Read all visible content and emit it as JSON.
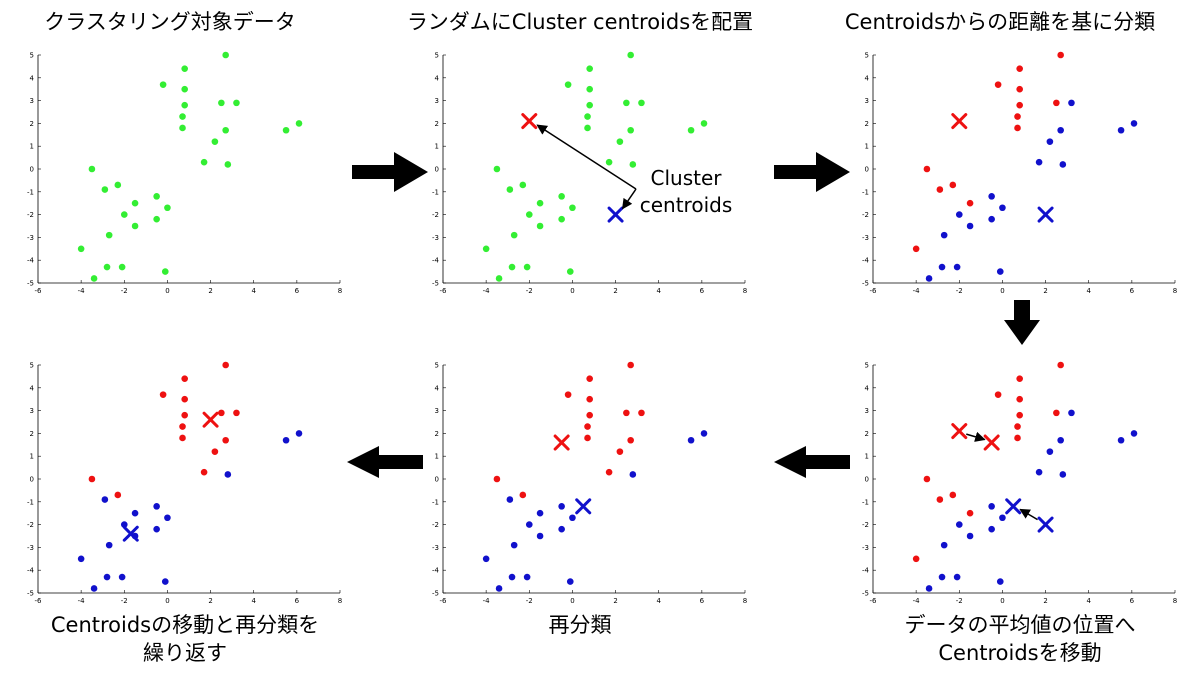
{
  "titles": {
    "p1": "クラスタリング対象データ",
    "p2": "ランダムにCluster centroidsを配置",
    "p3": "Centroidsからの距離を基に分類",
    "p4_line1": "データの平均値の位置へ",
    "p4_line2": "Centroidsを移動",
    "p5": "再分類",
    "p6_line1": "Centroidsの移動と再分類を",
    "p6_line2": "繰り返す"
  },
  "annotation": {
    "line1": "Cluster",
    "line2": "centroids"
  },
  "axes": {
    "x_ticks": [
      -6,
      -4,
      -2,
      0,
      2,
      4,
      6,
      8
    ],
    "y_ticks": [
      5,
      4,
      3,
      2,
      1,
      0,
      -1,
      -2,
      -3,
      -4,
      -5
    ],
    "xlim": [
      -6,
      8
    ],
    "ylim": [
      -5,
      5
    ]
  },
  "colors": {
    "unassigned": "#33ee33",
    "red": "#ee1111",
    "blue": "#1111cc",
    "arrow": "#000000"
  },
  "chart_data": {
    "type": "scatter",
    "points": [
      [
        -0.2,
        3.7
      ],
      [
        0.8,
        4.4
      ],
      [
        0.8,
        3.5
      ],
      [
        0.8,
        2.8
      ],
      [
        0.7,
        2.3
      ],
      [
        0.7,
        1.8
      ],
      [
        2.7,
        5.0
      ],
      [
        2.5,
        2.9
      ],
      [
        3.2,
        2.9
      ],
      [
        2.7,
        1.7
      ],
      [
        2.2,
        1.2
      ],
      [
        1.7,
        0.3
      ],
      [
        2.8,
        0.2
      ],
      [
        5.5,
        1.7
      ],
      [
        6.1,
        2.0
      ],
      [
        -3.5,
        0.0
      ],
      [
        -2.3,
        -0.7
      ],
      [
        -2.9,
        -0.9
      ],
      [
        -1.5,
        -1.5
      ],
      [
        -2.0,
        -2.0
      ],
      [
        -1.5,
        -2.5
      ],
      [
        -0.5,
        -1.2
      ],
      [
        -0.5,
        -2.2
      ],
      [
        0.0,
        -1.7
      ],
      [
        -2.7,
        -2.9
      ],
      [
        -4.0,
        -3.5
      ],
      [
        -2.8,
        -4.3
      ],
      [
        -2.1,
        -4.3
      ],
      [
        -0.1,
        -4.5
      ],
      [
        -3.4,
        -4.8
      ]
    ],
    "labels_step3": [
      "red",
      "red",
      "red",
      "red",
      "red",
      "red",
      "red",
      "red",
      "blue",
      "blue",
      "blue",
      "blue",
      "blue",
      "blue",
      "blue",
      "red",
      "red",
      "red",
      "red",
      "blue",
      "blue",
      "blue",
      "blue",
      "blue",
      "blue",
      "red",
      "blue",
      "blue",
      "blue",
      "blue"
    ],
    "labels_step5": [
      "red",
      "red",
      "red",
      "red",
      "red",
      "red",
      "red",
      "red",
      "red",
      "red",
      "red",
      "red",
      "blue",
      "blue",
      "blue",
      "red",
      "red",
      "blue",
      "blue",
      "blue",
      "blue",
      "blue",
      "blue",
      "blue",
      "blue",
      "blue",
      "blue",
      "blue",
      "blue",
      "blue"
    ],
    "centroids": {
      "initial": {
        "red": [
          -2.0,
          2.1
        ],
        "blue": [
          2.0,
          -2.0
        ]
      },
      "moved": {
        "red": [
          -0.5,
          1.6
        ],
        "blue": [
          0.5,
          -1.2
        ]
      },
      "final": {
        "red": [
          2.0,
          2.6
        ],
        "blue": [
          -1.7,
          -2.4
        ]
      }
    }
  }
}
